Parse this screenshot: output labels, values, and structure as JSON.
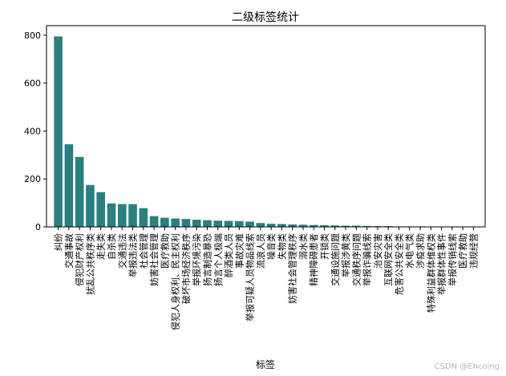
{
  "watermark": "CSDN @Ehcoing",
  "chart_data": {
    "type": "bar",
    "title": "二级标签统计",
    "xlabel": "标签",
    "ylabel": "",
    "ylim": [
      0,
      840
    ],
    "yticks": [
      0,
      200,
      400,
      600,
      800
    ],
    "bar_color": "#2a7f7f",
    "grid": false,
    "categories": [
      "纠纷",
      "交通事故",
      "侵犯财产权利",
      "扰乱公共秩序类",
      "走失类",
      "自杀类",
      "交通违法",
      "举报违法类",
      "社会管理",
      "妨害社会管理",
      "医疗救助",
      "侵犯人身权利、民主权利",
      "破坏市场经济秩序",
      "举报环境污染",
      "扬言制造暴恐",
      "扬言个人极端",
      "醉酒类人员",
      "事故灾难",
      "举报可疑人员物品线索",
      "流浪人员",
      "噪音类",
      "失物类",
      "妨害社会管理秩序",
      "溺水类",
      "精神障碍患者",
      "开锁类",
      "交通设施问题",
      "举报涉黄类",
      "交通秩序问题",
      "举报诈骗线索",
      "治安灾害",
      "互联网安全类",
      "危害公共安全类",
      "水电气类",
      "涉疫求助",
      "特殊利益群体维权类",
      "举报群体性事件",
      "举报传销线索",
      "医疗救助",
      "违规经营"
    ],
    "values": [
      795,
      345,
      292,
      175,
      145,
      98,
      95,
      95,
      78,
      45,
      38,
      35,
      33,
      30,
      28,
      26,
      25,
      24,
      22,
      16,
      13,
      12,
      10,
      9,
      8,
      7,
      6,
      5,
      5,
      4,
      3,
      3,
      2,
      2,
      2,
      1,
      1,
      1,
      1,
      1
    ]
  }
}
